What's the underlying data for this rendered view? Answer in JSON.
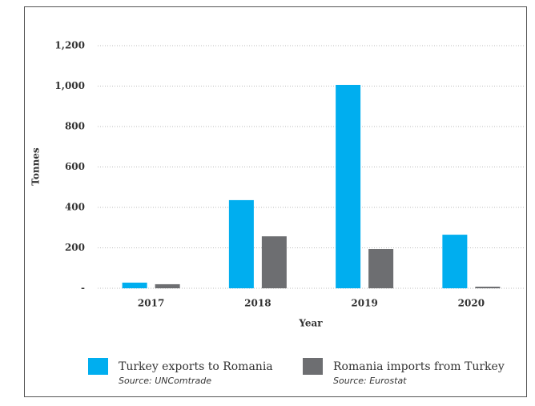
{
  "chart_data": {
    "type": "bar",
    "categories": [
      "2017",
      "2018",
      "2019",
      "2020"
    ],
    "series": [
      {
        "name": "Turkey exports to Romania",
        "source": "Source: UNComtrade",
        "color": "#00aeef",
        "values": [
          28,
          436,
          1006,
          265
        ]
      },
      {
        "name": "Romania imports from Turkey",
        "source": "Source: Eurostat",
        "color": "#6d6e71",
        "values": [
          20,
          257,
          194,
          8
        ]
      }
    ],
    "x_label": "Year",
    "y_label": "Tonnes",
    "ylim": [
      0,
      1200
    ],
    "yticks": [
      {
        "value": 0,
        "label": "-"
      },
      200,
      400,
      600,
      800,
      {
        "value": 1000,
        "label": "1,000"
      },
      {
        "value": 1200,
        "label": "1,200"
      }
    ],
    "grid": true,
    "legend": "bottom"
  }
}
